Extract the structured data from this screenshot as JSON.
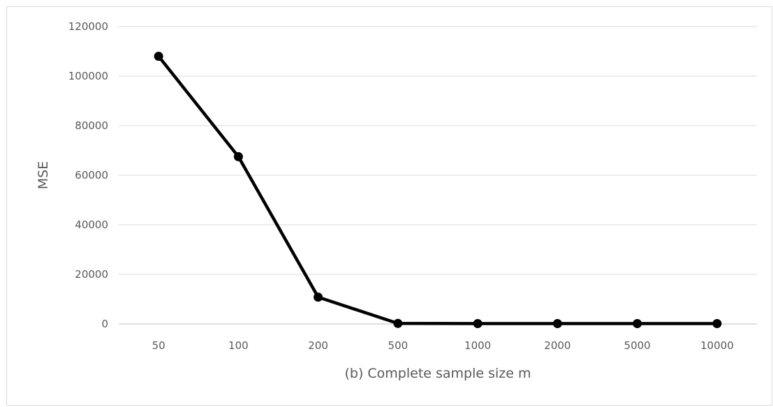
{
  "chart_data": {
    "type": "line",
    "categories": [
      "50",
      "100",
      "200",
      "500",
      "1000",
      "2000",
      "5000",
      "10000"
    ],
    "series": [
      {
        "values": [
          108000,
          67500,
          10800,
          200,
          150,
          150,
          150,
          150
        ],
        "color": "#000000"
      }
    ],
    "xlabel": "(b) Complete sample size m",
    "ylabel": "MSE",
    "ylim": [
      0,
      120000
    ],
    "yticks": [
      "0",
      "20000",
      "40000",
      "60000",
      "80000",
      "100000",
      "120000"
    ],
    "grid": "horizontal",
    "gridcolor": "#d9d9d9",
    "axiscolor": "#bfbfbf"
  }
}
